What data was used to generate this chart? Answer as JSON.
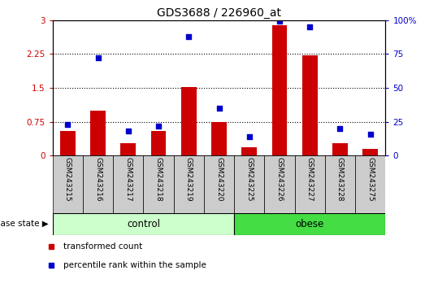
{
  "title": "GDS3688 / 226960_at",
  "samples": [
    "GSM243215",
    "GSM243216",
    "GSM243217",
    "GSM243218",
    "GSM243219",
    "GSM243220",
    "GSM243225",
    "GSM243226",
    "GSM243227",
    "GSM243228",
    "GSM243275"
  ],
  "bar_values": [
    0.55,
    1.0,
    0.28,
    0.55,
    1.52,
    0.75,
    0.18,
    2.88,
    2.22,
    0.28,
    0.15
  ],
  "dot_values": [
    23,
    72,
    18,
    22,
    88,
    35,
    14,
    99,
    95,
    20,
    16
  ],
  "bar_color": "#cc0000",
  "dot_color": "#0000cc",
  "ylim_left": [
    0,
    3
  ],
  "ylim_right": [
    0,
    100
  ],
  "yticks_left": [
    0,
    0.75,
    1.5,
    2.25,
    3
  ],
  "yticks_right": [
    0,
    25,
    50,
    75,
    100
  ],
  "ytick_labels_left": [
    "0",
    "0.75",
    "1.5",
    "2.25",
    "3"
  ],
  "ytick_labels_right": [
    "0",
    "25",
    "50",
    "75",
    "100%"
  ],
  "grid_values": [
    0.75,
    1.5,
    2.25
  ],
  "n_control": 6,
  "n_obese": 5,
  "control_label": "control",
  "obese_label": "obese",
  "disease_state_label": "disease state",
  "legend_bar_label": "transformed count",
  "legend_dot_label": "percentile rank within the sample",
  "control_color": "#ccffcc",
  "obese_color": "#44dd44",
  "xlabel_area_color": "#cccccc",
  "bar_width": 0.5
}
